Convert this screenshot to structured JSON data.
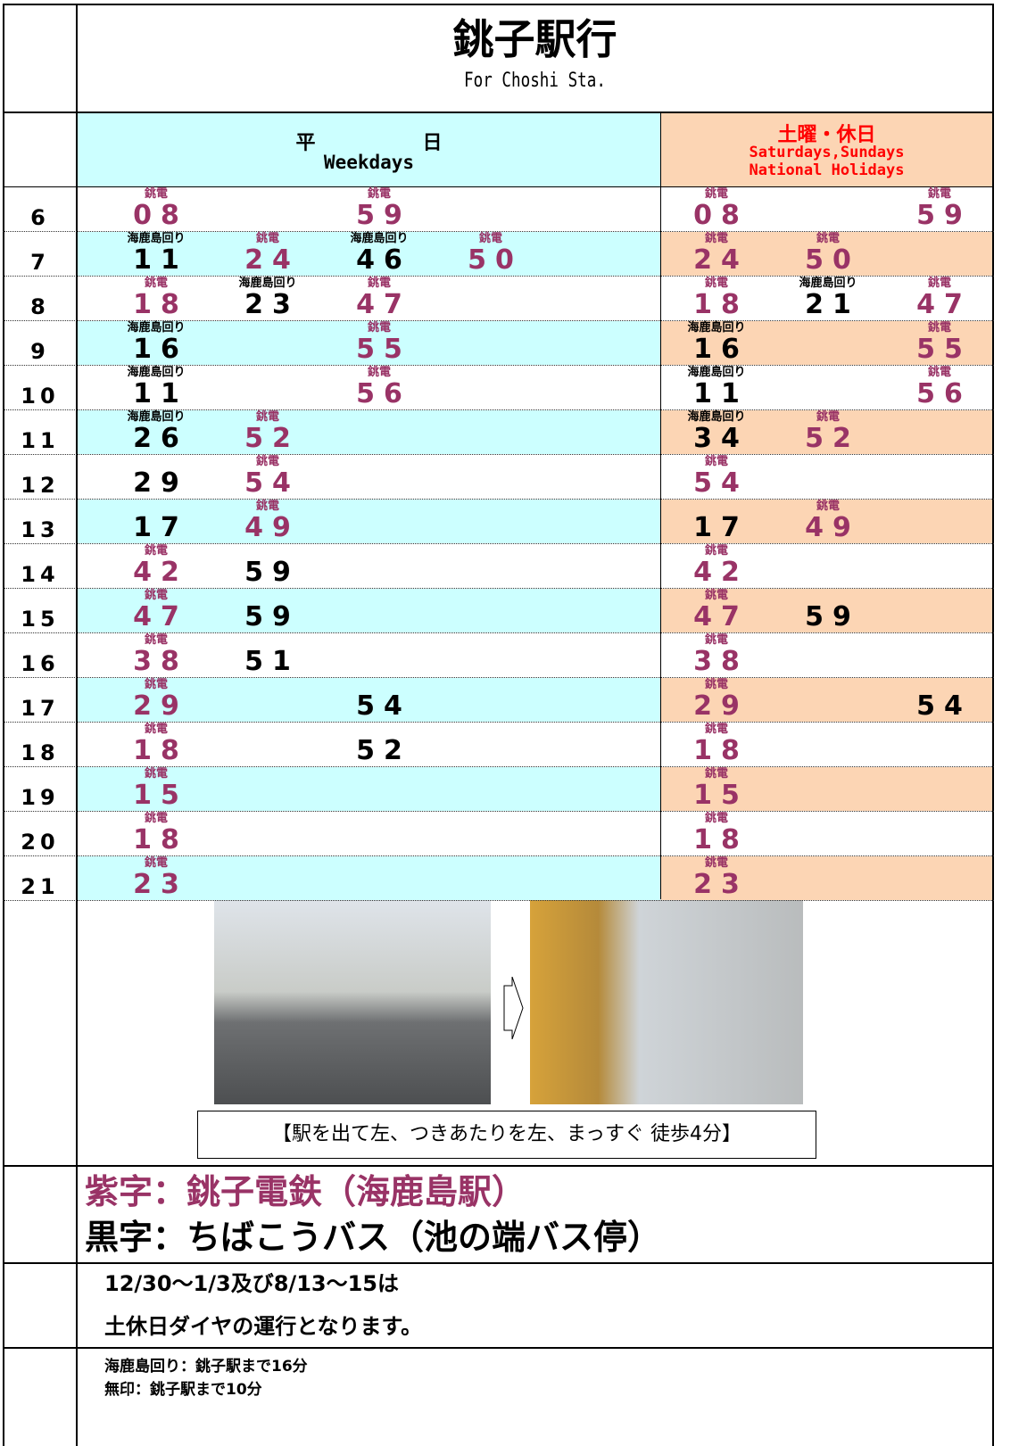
{
  "title": {
    "main": "銚子駅行",
    "sub": "For Choshi Sta."
  },
  "header": {
    "weekday": {
      "jp": "平日",
      "en": "Weekdays"
    },
    "weekend": {
      "jp": "土曜・休日",
      "en": [
        "Saturdays,Sundays",
        "National Holidays"
      ]
    }
  },
  "timetable": [
    {
      "hour": 6,
      "weekday": [
        {
          "tag": "銚電",
          "min": "08",
          "color": "#993366"
        },
        null,
        {
          "tag": "銚電",
          "min": "59",
          "color": "#993366"
        }
      ],
      "weekend": [
        {
          "tag": "銚電",
          "min": "08",
          "color": "#993366"
        },
        null,
        {
          "tag": "銚電",
          "min": "59",
          "color": "#993366"
        }
      ]
    },
    {
      "hour": 7,
      "weekday": [
        {
          "tag": "海鹿島回り",
          "min": "11",
          "color": "#000000"
        },
        {
          "tag": "銚電",
          "min": "24",
          "color": "#993366"
        },
        {
          "tag": "海鹿島回り",
          "min": "46",
          "color": "#000000"
        },
        {
          "tag": "銚電",
          "min": "50",
          "color": "#993366"
        }
      ],
      "weekend": [
        {
          "tag": "銚電",
          "min": "24",
          "color": "#993366"
        },
        {
          "tag": "銚電",
          "min": "50",
          "color": "#993366"
        }
      ]
    },
    {
      "hour": 8,
      "weekday": [
        {
          "tag": "銚電",
          "min": "18",
          "color": "#993366"
        },
        {
          "tag": "海鹿島回り",
          "min": "23",
          "color": "#000000"
        },
        {
          "tag": "銚電",
          "min": "47",
          "color": "#993366"
        }
      ],
      "weekend": [
        {
          "tag": "銚電",
          "min": "18",
          "color": "#993366"
        },
        {
          "tag": "海鹿島回り",
          "min": "21",
          "color": "#000000"
        },
        {
          "tag": "銚電",
          "min": "47",
          "color": "#993366"
        }
      ]
    },
    {
      "hour": 9,
      "weekday": [
        {
          "tag": "海鹿島回り",
          "min": "16",
          "color": "#000000"
        },
        null,
        {
          "tag": "銚電",
          "min": "55",
          "color": "#993366"
        }
      ],
      "weekend": [
        {
          "tag": "海鹿島回り",
          "min": "16",
          "color": "#000000"
        },
        null,
        {
          "tag": "銚電",
          "min": "55",
          "color": "#993366"
        }
      ]
    },
    {
      "hour": 10,
      "weekday": [
        {
          "tag": "海鹿島回り",
          "min": "11",
          "color": "#000000"
        },
        null,
        {
          "tag": "銚電",
          "min": "56",
          "color": "#993366"
        }
      ],
      "weekend": [
        {
          "tag": "海鹿島回り",
          "min": "11",
          "color": "#000000"
        },
        null,
        {
          "tag": "銚電",
          "min": "56",
          "color": "#993366"
        }
      ]
    },
    {
      "hour": 11,
      "weekday": [
        {
          "tag": "海鹿島回り",
          "min": "26",
          "color": "#000000"
        },
        {
          "tag": "銚電",
          "min": "52",
          "color": "#993366"
        }
      ],
      "weekend": [
        {
          "tag": "海鹿島回り",
          "min": "34",
          "color": "#000000"
        },
        {
          "tag": "銚電",
          "min": "52",
          "color": "#993366"
        }
      ]
    },
    {
      "hour": 12,
      "weekday": [
        {
          "min": "29",
          "color": "#000000"
        },
        {
          "tag": "銚電",
          "min": "54",
          "color": "#993366"
        }
      ],
      "weekend": [
        {
          "tag": "銚電",
          "min": "54",
          "color": "#993366"
        }
      ]
    },
    {
      "hour": 13,
      "weekday": [
        {
          "min": "17",
          "color": "#000000"
        },
        {
          "tag": "銚電",
          "min": "49",
          "color": "#993366"
        }
      ],
      "weekend": [
        {
          "min": "17",
          "color": "#000000"
        },
        {
          "tag": "銚電",
          "min": "49",
          "color": "#993366"
        }
      ]
    },
    {
      "hour": 14,
      "weekday": [
        {
          "tag": "銚電",
          "min": "42",
          "color": "#993366"
        },
        {
          "min": "59",
          "color": "#000000"
        }
      ],
      "weekend": [
        {
          "tag": "銚電",
          "min": "42",
          "color": "#993366"
        }
      ]
    },
    {
      "hour": 15,
      "weekday": [
        {
          "tag": "銚電",
          "min": "47",
          "color": "#993366"
        },
        {
          "min": "59",
          "color": "#000000"
        }
      ],
      "weekend": [
        {
          "tag": "銚電",
          "min": "47",
          "color": "#993366"
        },
        {
          "min": "59",
          "color": "#000000"
        }
      ]
    },
    {
      "hour": 16,
      "weekday": [
        {
          "tag": "銚電",
          "min": "38",
          "color": "#993366"
        },
        {
          "min": "51",
          "color": "#000000"
        }
      ],
      "weekend": [
        {
          "tag": "銚電",
          "min": "38",
          "color": "#993366"
        }
      ]
    },
    {
      "hour": 17,
      "weekday": [
        {
          "tag": "銚電",
          "min": "29",
          "color": "#993366"
        },
        null,
        {
          "min": "54",
          "color": "#000000"
        }
      ],
      "weekend": [
        {
          "tag": "銚電",
          "min": "29",
          "color": "#993366"
        },
        null,
        {
          "min": "54",
          "color": "#000000"
        }
      ]
    },
    {
      "hour": 18,
      "weekday": [
        {
          "tag": "銚電",
          "min": "18",
          "color": "#993366"
        },
        null,
        {
          "min": "52",
          "color": "#000000"
        }
      ],
      "weekend": [
        {
          "tag": "銚電",
          "min": "18",
          "color": "#993366"
        }
      ]
    },
    {
      "hour": 19,
      "weekday": [
        {
          "tag": "銚電",
          "min": "15",
          "color": "#993366"
        }
      ],
      "weekend": [
        {
          "tag": "銚電",
          "min": "15",
          "color": "#993366"
        }
      ]
    },
    {
      "hour": 20,
      "weekday": [
        {
          "tag": "銚電",
          "min": "18",
          "color": "#993366"
        }
      ],
      "weekend": [
        {
          "tag": "銚電",
          "min": "18",
          "color": "#993366"
        }
      ]
    },
    {
      "hour": 21,
      "weekday": [
        {
          "tag": "銚電",
          "min": "23",
          "color": "#993366"
        }
      ],
      "weekend": [
        {
          "tag": "銚電",
          "min": "23",
          "color": "#993366"
        }
      ]
    }
  ],
  "photo_caption": "【駅を出て左、つきあたりを左、まっすぐ 徒歩4分】",
  "legend": [
    {
      "text": "紫字：銚子電鉄（海鹿島駅）",
      "color": "#993366"
    },
    {
      "text": "黒字：ちばこうバス（池の端バス停）",
      "color": "#000000"
    }
  ],
  "notes": [
    "12/30～1/3及び8/13～15は",
    "土休日ダイヤの運行となります。"
  ],
  "footer": [
    "海鹿島回り：銚子駅まで16分",
    "無印：銚子駅まで10分"
  ]
}
